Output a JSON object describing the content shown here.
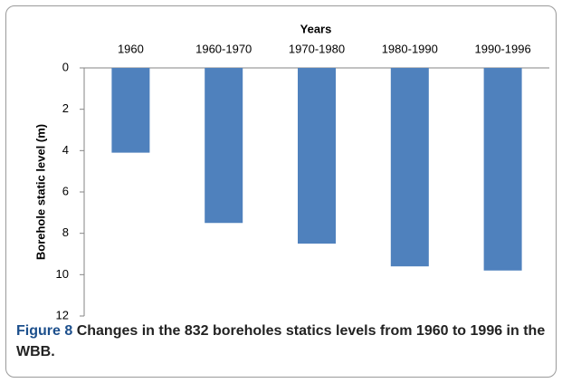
{
  "chart_data": {
    "type": "bar",
    "x_title": "Years",
    "y_title": "Borehole static level (m)",
    "categories": [
      "1960",
      "1960-1970",
      "1970-1980",
      "1980-1990",
      "1990-1996"
    ],
    "values": [
      4.1,
      7.5,
      8.5,
      9.6,
      9.8
    ],
    "color": "#4f81bd",
    "ylim": [
      0,
      12
    ],
    "yticks": [
      0,
      2,
      4,
      6,
      8,
      10,
      12
    ],
    "y_reversed": true,
    "x_axis_position": "top",
    "grid": false
  },
  "caption": {
    "label": "Figure 8",
    "text": "Changes in the 832 boreholes statics levels from 1960 to 1996 in the WBB."
  }
}
